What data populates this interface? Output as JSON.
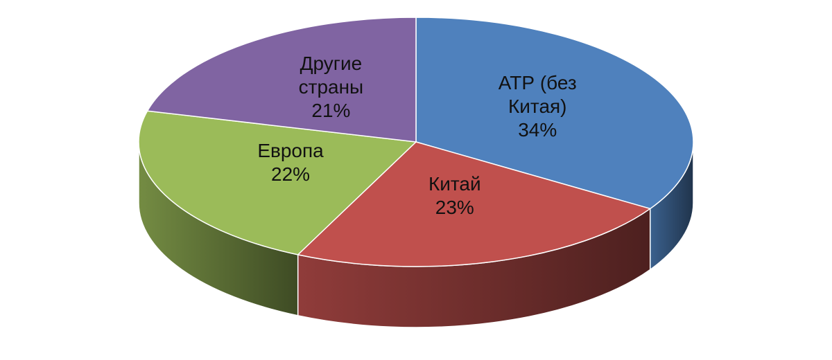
{
  "chart_data": {
    "type": "pie",
    "categories": [
      "АТР (без Китая)",
      "Китай",
      "Европа",
      "Другие страны"
    ],
    "values": [
      34,
      23,
      22,
      21
    ],
    "value_labels": [
      "34%",
      "23%",
      "22%",
      "21%"
    ],
    "colors": [
      "#4f81bd",
      "#c0504d",
      "#9bbb59",
      "#8064a2"
    ]
  }
}
